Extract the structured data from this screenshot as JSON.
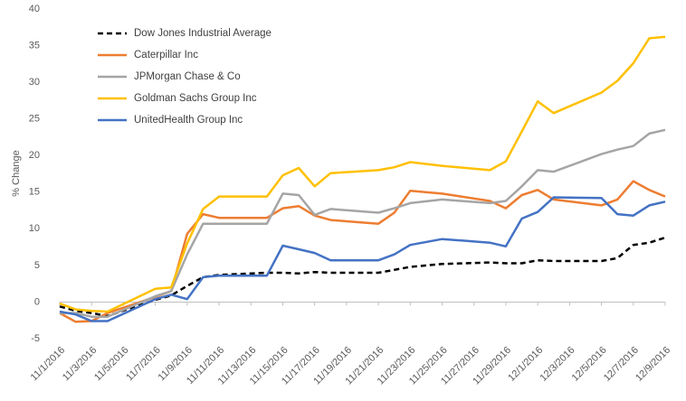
{
  "chart_data": {
    "type": "line",
    "y_label": "% Change",
    "x": [
      "11/1/2016",
      "11/2/2016",
      "11/3/2016",
      "11/4/2016",
      "11/7/2016",
      "11/8/2016",
      "11/9/2016",
      "11/10/2016",
      "11/11/2016",
      "11/14/2016",
      "11/15/2016",
      "11/16/2016",
      "11/17/2016",
      "11/18/2016",
      "11/21/2016",
      "11/22/2016",
      "11/23/2016",
      "11/25/2016",
      "11/28/2016",
      "11/29/2016",
      "11/30/2016",
      "12/1/2016",
      "12/2/2016",
      "12/5/2016",
      "12/6/2016",
      "12/7/2016",
      "12/8/2016",
      "12/9/2016"
    ],
    "xlim": [
      "11/1/2016",
      "12/9/2016"
    ],
    "xticks": [
      "11/1/2016",
      "11/3/2016",
      "11/5/2016",
      "11/7/2016",
      "11/9/2016",
      "11/11/2016",
      "11/13/2016",
      "11/15/2016",
      "11/17/2016",
      "11/19/2016",
      "11/21/2016",
      "11/23/2016",
      "11/25/2016",
      "11/27/2016",
      "11/29/2016",
      "12/1/2016",
      "12/3/2016",
      "12/5/2016",
      "12/7/2016",
      "12/9/2016"
    ],
    "ylim": [
      -5,
      40
    ],
    "yticks": [
      -5,
      0,
      5,
      10,
      15,
      20,
      25,
      30,
      35,
      40
    ],
    "grid": false,
    "series": [
      {
        "name": "Dow Jones Industrial Average",
        "color": "#000000",
        "dash": true,
        "values": [
          -0.6,
          -1.2,
          -1.5,
          -1.9,
          0.3,
          0.9,
          2.2,
          3.4,
          3.7,
          4.0,
          4.0,
          3.9,
          4.1,
          4.0,
          4.0,
          4.4,
          4.8,
          5.2,
          5.4,
          5.3,
          5.3,
          5.7,
          5.6,
          5.6,
          6.0,
          7.8,
          8.1,
          8.8
        ]
      },
      {
        "name": "Caterpillar Inc",
        "color": "#ed7d31",
        "dash": false,
        "values": [
          -1.5,
          -2.7,
          -2.6,
          -1.5,
          0.7,
          1.5,
          9.3,
          12.0,
          11.5,
          11.5,
          12.8,
          13.1,
          11.8,
          11.2,
          10.7,
          12.2,
          15.2,
          14.8,
          13.8,
          12.8,
          14.6,
          15.3,
          14.0,
          13.2,
          14.0,
          16.5,
          15.3,
          14.4
        ]
      },
      {
        "name": "JPMorgan Chase & Co",
        "color": "#a5a5a5",
        "dash": false,
        "values": [
          -1.5,
          -1.5,
          -2.0,
          -2.0,
          0.8,
          1.5,
          6.5,
          10.7,
          10.7,
          10.7,
          14.8,
          14.6,
          11.9,
          12.7,
          12.2,
          12.8,
          13.5,
          14.0,
          13.5,
          13.8,
          15.8,
          18.0,
          17.8,
          20.2,
          20.8,
          21.3,
          23.0,
          23.5
        ]
      },
      {
        "name": "Goldman Sachs Group Inc",
        "color": "#ffc000",
        "dash": false,
        "values": [
          -0.2,
          -1.0,
          -1.2,
          -1.3,
          1.8,
          2.0,
          8.0,
          12.7,
          14.4,
          14.4,
          17.3,
          18.3,
          15.8,
          17.6,
          18.0,
          18.4,
          19.1,
          18.6,
          18.0,
          19.2,
          23.3,
          27.4,
          25.8,
          28.6,
          30.2,
          32.6,
          36.0,
          36.2
        ]
      },
      {
        "name": "UnitedHealth Group Inc",
        "color": "#4472c4",
        "dash": false,
        "values": [
          -1.3,
          -1.7,
          -2.6,
          -2.6,
          0.4,
          1.0,
          0.4,
          3.4,
          3.6,
          3.6,
          7.7,
          7.2,
          6.7,
          5.7,
          5.7,
          6.5,
          7.8,
          8.6,
          8.1,
          7.6,
          11.4,
          12.3,
          14.3,
          14.2,
          12.0,
          11.8,
          13.2,
          13.7
        ]
      }
    ]
  }
}
